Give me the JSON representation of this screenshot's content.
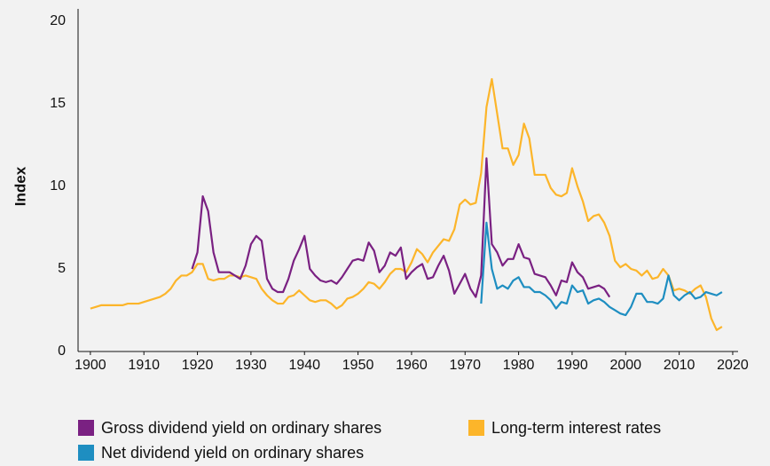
{
  "chart_data": {
    "type": "line",
    "ylabel": "Index",
    "x": [
      1900,
      1901,
      1902,
      1903,
      1904,
      1905,
      1906,
      1907,
      1908,
      1909,
      1910,
      1911,
      1912,
      1913,
      1914,
      1915,
      1916,
      1917,
      1918,
      1919,
      1920,
      1921,
      1922,
      1923,
      1924,
      1925,
      1926,
      1927,
      1928,
      1929,
      1930,
      1931,
      1932,
      1933,
      1934,
      1935,
      1936,
      1937,
      1938,
      1939,
      1940,
      1941,
      1942,
      1943,
      1944,
      1945,
      1946,
      1947,
      1948,
      1949,
      1950,
      1951,
      1952,
      1953,
      1954,
      1955,
      1956,
      1957,
      1958,
      1959,
      1960,
      1961,
      1962,
      1963,
      1964,
      1965,
      1966,
      1967,
      1968,
      1969,
      1970,
      1971,
      1972,
      1973,
      1974,
      1975,
      1976,
      1977,
      1978,
      1979,
      1980,
      1981,
      1982,
      1983,
      1984,
      1985,
      1986,
      1987,
      1988,
      1989,
      1990,
      1991,
      1992,
      1993,
      1994,
      1995,
      1996,
      1997,
      1998,
      1999,
      2000,
      2001,
      2002,
      2003,
      2004,
      2005,
      2006,
      2007,
      2008,
      2009,
      2010,
      2011,
      2012,
      2013,
      2014,
      2015,
      2016,
      2017,
      2018
    ],
    "series": [
      {
        "name": "Gross dividend yield on ordinary shares",
        "color": "#7a2182",
        "values": [
          null,
          null,
          null,
          null,
          null,
          null,
          null,
          null,
          null,
          null,
          null,
          null,
          null,
          null,
          null,
          null,
          null,
          null,
          null,
          5.0,
          6.0,
          9.4,
          8.5,
          6.0,
          4.8,
          4.8,
          4.8,
          4.6,
          4.4,
          5.2,
          6.5,
          7.0,
          6.7,
          4.4,
          3.8,
          3.6,
          3.6,
          4.4,
          5.5,
          6.2,
          7.0,
          5.0,
          4.6,
          4.3,
          4.2,
          4.3,
          4.1,
          4.5,
          5.0,
          5.5,
          5.6,
          5.5,
          6.6,
          6.1,
          4.8,
          5.2,
          6.0,
          5.8,
          6.3,
          4.4,
          4.8,
          5.1,
          5.3,
          4.4,
          4.5,
          5.2,
          5.8,
          4.9,
          3.5,
          4.1,
          4.7,
          3.8,
          3.3,
          4.6,
          11.7,
          6.5,
          6.0,
          5.2,
          5.6,
          5.6,
          6.5,
          5.7,
          5.6,
          4.7,
          4.6,
          4.5,
          4.0,
          3.4,
          4.3,
          4.2,
          5.4,
          4.8,
          4.5,
          3.8,
          3.9,
          4.0,
          3.8,
          3.3,
          null,
          null,
          null,
          null,
          null,
          null,
          null,
          null,
          null,
          null,
          null,
          null,
          null,
          null,
          null,
          null,
          null,
          null,
          null,
          null,
          null
        ]
      },
      {
        "name": "Long-term interest rates",
        "color": "#fcb52a",
        "values": [
          2.6,
          2.7,
          2.8,
          2.8,
          2.8,
          2.8,
          2.8,
          2.9,
          2.9,
          2.9,
          3.0,
          3.1,
          3.2,
          3.3,
          3.5,
          3.8,
          4.3,
          4.6,
          4.6,
          4.8,
          5.3,
          5.3,
          4.4,
          4.3,
          4.4,
          4.4,
          4.6,
          4.6,
          4.5,
          4.6,
          4.5,
          4.4,
          3.8,
          3.4,
          3.1,
          2.9,
          2.9,
          3.3,
          3.4,
          3.7,
          3.4,
          3.1,
          3.0,
          3.1,
          3.1,
          2.9,
          2.6,
          2.8,
          3.2,
          3.3,
          3.5,
          3.8,
          4.2,
          4.1,
          3.8,
          4.2,
          4.7,
          5.0,
          5.0,
          4.8,
          5.4,
          6.2,
          5.9,
          5.4,
          6.0,
          6.4,
          6.8,
          6.7,
          7.4,
          8.9,
          9.2,
          8.9,
          9.0,
          10.8,
          14.8,
          16.5,
          14.4,
          12.3,
          12.3,
          11.3,
          11.9,
          13.8,
          12.9,
          10.7,
          10.7,
          10.7,
          9.9,
          9.5,
          9.4,
          9.6,
          11.1,
          10.0,
          9.1,
          7.9,
          8.2,
          8.3,
          7.8,
          7.0,
          5.5,
          5.1,
          5.3,
          5.0,
          4.9,
          4.6,
          4.9,
          4.4,
          4.5,
          5.0,
          4.6,
          3.7,
          3.8,
          3.7,
          3.5,
          3.8,
          4.0,
          3.3,
          2.0,
          1.3,
          1.5
        ]
      },
      {
        "name": "Net dividend yield on ordinary shares",
        "color": "#1e8ec1",
        "values": [
          null,
          null,
          null,
          null,
          null,
          null,
          null,
          null,
          null,
          null,
          null,
          null,
          null,
          null,
          null,
          null,
          null,
          null,
          null,
          null,
          null,
          null,
          null,
          null,
          null,
          null,
          null,
          null,
          null,
          null,
          null,
          null,
          null,
          null,
          null,
          null,
          null,
          null,
          null,
          null,
          null,
          null,
          null,
          null,
          null,
          null,
          null,
          null,
          null,
          null,
          null,
          null,
          null,
          null,
          null,
          null,
          null,
          null,
          null,
          null,
          null,
          null,
          null,
          null,
          null,
          null,
          null,
          null,
          null,
          null,
          null,
          null,
          null,
          2.9,
          7.8,
          5.0,
          3.8,
          4.0,
          3.8,
          4.3,
          4.5,
          3.9,
          3.9,
          3.6,
          3.6,
          3.4,
          3.1,
          2.6,
          3.0,
          2.9,
          4.0,
          3.6,
          3.7,
          2.9,
          3.1,
          3.2,
          3.0,
          2.7,
          2.5,
          2.3,
          2.2,
          2.7,
          3.5,
          3.5,
          3.0,
          3.0,
          2.9,
          3.2,
          4.6,
          3.4,
          3.1,
          3.4,
          3.6,
          3.2,
          3.3,
          3.6,
          3.5,
          3.4,
          3.6
        ]
      }
    ],
    "xlim": [
      1897.7,
      2021
    ],
    "xticks": [
      1900,
      1910,
      1920,
      1930,
      1940,
      1950,
      1960,
      1970,
      1980,
      1990,
      2000,
      2010,
      2020
    ],
    "ylim": [
      0,
      20.75
    ],
    "yticks": [
      0,
      5,
      10,
      15,
      20
    ],
    "grid": false,
    "legend": "bottom"
  }
}
